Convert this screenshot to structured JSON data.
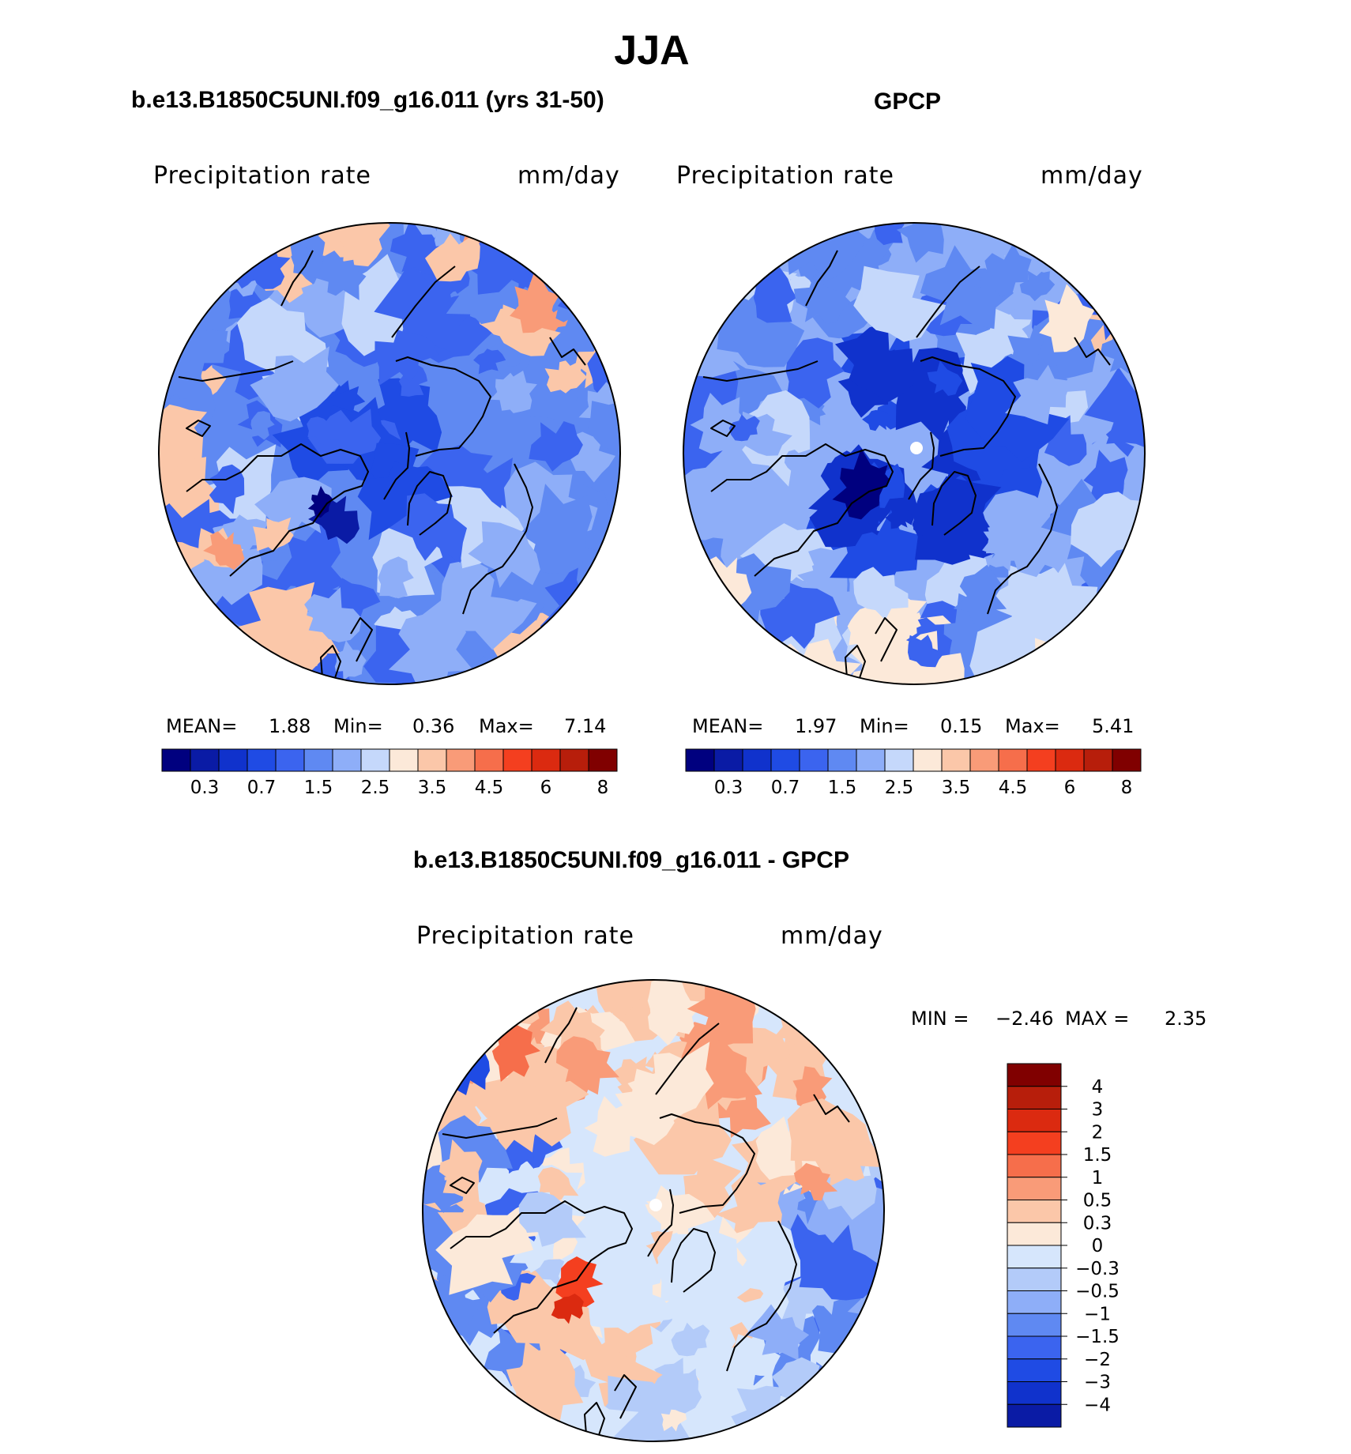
{
  "figure": {
    "title": "JJA",
    "variable_label": "Precipitation  rate",
    "units_label": "mm/day"
  },
  "chart_data": [
    {
      "type": "heatmap",
      "projection": "polar-stereographic-north",
      "title": "b.e13.B1850C5UNI.f09_g16.011 (yrs 31-50)",
      "variable": "Precipitation  rate",
      "units": "mm/day",
      "stats": {
        "mean_label": "MEAN=",
        "mean": "1.88",
        "min_label": "Min=",
        "min": "0.36",
        "max_label": "Max=",
        "max": "7.14"
      },
      "colorbar": {
        "levels": [
          "0.3",
          "0.7",
          "1.5",
          "2.5",
          "3.5",
          "4.5",
          "6",
          "8"
        ],
        "colors": [
          "#00007f",
          "#0a1ba5",
          "#1032cc",
          "#1f4be4",
          "#3b64ef",
          "#5f89f2",
          "#8eaef8",
          "#c5d8fb",
          "#fce9d9",
          "#fbc7a9",
          "#f99b78",
          "#f66e4b",
          "#f43f1f",
          "#db2a10",
          "#b71e0b",
          "#800000"
        ]
      }
    },
    {
      "type": "heatmap",
      "projection": "polar-stereographic-north",
      "title": "GPCP",
      "variable": "Precipitation  rate",
      "units": "mm/day",
      "stats": {
        "mean_label": "MEAN=",
        "mean": "1.97",
        "min_label": "Min=",
        "min": "0.15",
        "max_label": "Max=",
        "max": "5.41"
      },
      "colorbar": {
        "levels": [
          "0.3",
          "0.7",
          "1.5",
          "2.5",
          "3.5",
          "4.5",
          "6",
          "8"
        ],
        "colors": [
          "#00007f",
          "#0a1ba5",
          "#1032cc",
          "#1f4be4",
          "#3b64ef",
          "#5f89f2",
          "#8eaef8",
          "#c5d8fb",
          "#fce9d9",
          "#fbc7a9",
          "#f99b78",
          "#f66e4b",
          "#f43f1f",
          "#db2a10",
          "#b71e0b",
          "#800000"
        ]
      }
    },
    {
      "type": "heatmap",
      "projection": "polar-stereographic-north",
      "title": "b.e13.B1850C5UNI.f09_g16.011 - GPCP",
      "variable": "Precipitation  rate",
      "units": "mm/day",
      "stats": {
        "min_label": "MIN =",
        "min": "−2.46",
        "max_label": "MAX =",
        "max": "2.35"
      },
      "colorbar": {
        "levels": [
          "4",
          "3",
          "2",
          "1.5",
          "1",
          "0.5",
          "0.3",
          "0",
          "−0.3",
          "−0.5",
          "−1",
          "−1.5",
          "−2",
          "−3",
          "−4"
        ],
        "colors": [
          "#800000",
          "#b71e0b",
          "#db2a10",
          "#f43f1f",
          "#f66e4b",
          "#f99b78",
          "#fbc7a9",
          "#fce9d9",
          "#d6e6fc",
          "#b3cbf9",
          "#8eaef8",
          "#5f89f2",
          "#3b64ef",
          "#1f4be4",
          "#1032cc",
          "#0a1ba5"
        ]
      }
    }
  ]
}
